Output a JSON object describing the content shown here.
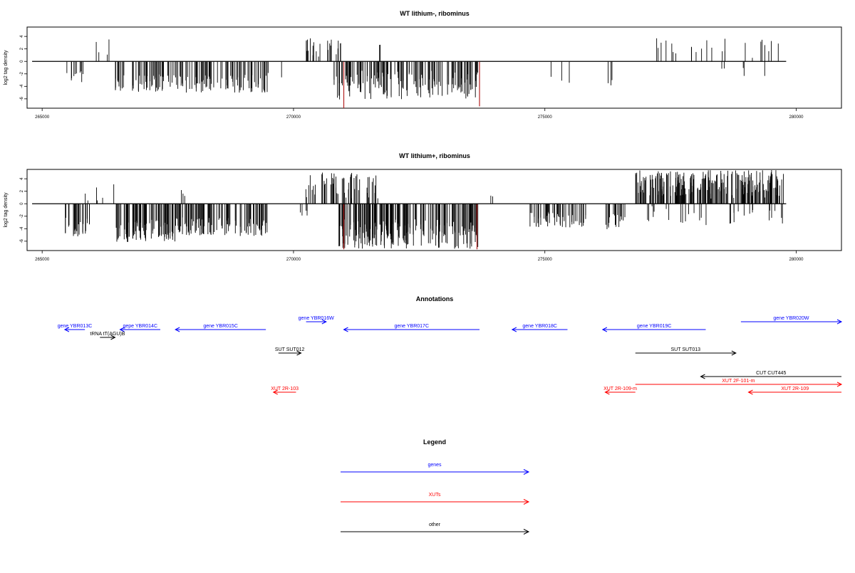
{
  "colors": {
    "gene": "#0000ff",
    "xut": "#ff0000",
    "other": "#000000",
    "highlight": "#b22222",
    "bar": "#000000"
  },
  "chart_data": [
    {
      "type": "bar",
      "title": "WT lithium-, ribominus",
      "ylabel": "log2 tag density",
      "xlim": [
        264700,
        280900
      ],
      "ylim": [
        -7.5,
        5.5
      ],
      "x_ticks": [
        "265000",
        "270000",
        "275000",
        "280000"
      ],
      "x_tick_values": [
        265000,
        270000,
        275000,
        280000
      ],
      "y_ticks": [
        "-6",
        "-4",
        "-2",
        "0",
        "2",
        "4"
      ],
      "y_tick_values": [
        -6,
        -4,
        -2,
        0,
        2,
        4
      ],
      "baseline_range": [
        264800,
        279800
      ],
      "segments": [
        {
          "from": 265450,
          "to": 265850,
          "dir": -1,
          "min": 1.2,
          "max": 3.4,
          "n": 10,
          "seed": 11
        },
        {
          "from": 266000,
          "to": 266400,
          "dir": 1,
          "min": 0.5,
          "max": 4.4,
          "n": 4,
          "seed": 12
        },
        {
          "from": 266450,
          "to": 267650,
          "dir": -1,
          "min": 1.8,
          "max": 4.9,
          "n": 55,
          "seed": 13
        },
        {
          "from": 267650,
          "to": 269500,
          "dir": -1,
          "min": 1.8,
          "max": 5.0,
          "n": 85,
          "seed": 14
        },
        {
          "from": 269750,
          "to": 269800,
          "dir": -1,
          "min": 2.0,
          "max": 3.0,
          "n": 1,
          "seed": 15
        },
        {
          "from": 270200,
          "to": 270950,
          "dir": 1,
          "min": 0.5,
          "max": 3.8,
          "n": 22,
          "seed": 16
        },
        {
          "from": 270800,
          "to": 273700,
          "dir": -1,
          "min": 1.5,
          "max": 6.1,
          "n": 150,
          "seed": 17
        },
        {
          "from": 271650,
          "to": 271750,
          "dir": 1,
          "min": 1.5,
          "max": 2.8,
          "n": 2,
          "seed": 18
        },
        {
          "from": 274950,
          "to": 275600,
          "dir": -1,
          "min": 1.0,
          "max": 3.9,
          "n": 3,
          "seed": 19
        },
        {
          "from": 276250,
          "to": 276450,
          "dir": -1,
          "min": 2.0,
          "max": 3.9,
          "n": 3,
          "seed": 20
        },
        {
          "from": 276800,
          "to": 279650,
          "dir": 1,
          "min": 0.4,
          "max": 3.7,
          "n": 24,
          "seed": 21
        },
        {
          "from": 278400,
          "to": 279600,
          "dir": -1,
          "min": 1.0,
          "max": 2.9,
          "n": 5,
          "seed": 22
        }
      ],
      "highlights": [
        {
          "x": 271000,
          "depth": 7.5
        },
        {
          "x": 273700,
          "depth": 7.2
        }
      ]
    },
    {
      "type": "bar",
      "title": "WT lithium+, ribominus",
      "ylabel": "log2 tag density",
      "xlim": [
        264700,
        280900
      ],
      "ylim": [
        -7.5,
        5.5
      ],
      "x_ticks": [
        "265000",
        "270000",
        "275000",
        "280000"
      ],
      "x_tick_values": [
        265000,
        270000,
        275000,
        280000
      ],
      "y_ticks": [
        "-6",
        "-4",
        "-2",
        "0",
        "2",
        "4"
      ],
      "y_tick_values": [
        -6,
        -4,
        -2,
        0,
        2,
        4
      ],
      "baseline_range": [
        264800,
        279800
      ],
      "segments": [
        {
          "from": 265450,
          "to": 265950,
          "dir": -1,
          "min": 2.0,
          "max": 5.3,
          "n": 28,
          "seed": 31
        },
        {
          "from": 265800,
          "to": 266450,
          "dir": 1,
          "min": 0.5,
          "max": 3.4,
          "n": 6,
          "seed": 32
        },
        {
          "from": 266450,
          "to": 267650,
          "dir": -1,
          "min": 2.5,
          "max": 6.2,
          "n": 95,
          "seed": 33
        },
        {
          "from": 267750,
          "to": 268150,
          "dir": 1,
          "min": 0.5,
          "max": 2.2,
          "n": 3,
          "seed": 34
        },
        {
          "from": 267650,
          "to": 269500,
          "dir": -1,
          "min": 2.0,
          "max": 5.2,
          "n": 110,
          "seed": 35
        },
        {
          "from": 270050,
          "to": 270300,
          "dir": -1,
          "min": 0.8,
          "max": 2.0,
          "n": 5,
          "seed": 36
        },
        {
          "from": 270200,
          "to": 271700,
          "dir": 1,
          "min": 0.8,
          "max": 5.0,
          "n": 55,
          "seed": 37
        },
        {
          "from": 270900,
          "to": 273700,
          "dir": -1,
          "min": 2.5,
          "max": 7.2,
          "n": 200,
          "seed": 38
        },
        {
          "from": 273900,
          "to": 274100,
          "dir": 1,
          "min": 0.6,
          "max": 1.5,
          "n": 2,
          "seed": 39
        },
        {
          "from": 274700,
          "to": 275850,
          "dir": -1,
          "min": 1.2,
          "max": 3.8,
          "n": 55,
          "seed": 40
        },
        {
          "from": 276150,
          "to": 276600,
          "dir": -1,
          "min": 1.5,
          "max": 4.3,
          "n": 18,
          "seed": 41
        },
        {
          "from": 276800,
          "to": 279750,
          "dir": 1,
          "min": 0.8,
          "max": 5.4,
          "n": 230,
          "seed": 42
        },
        {
          "from": 276900,
          "to": 279750,
          "dir": -1,
          "min": 0.4,
          "max": 3.6,
          "n": 30,
          "seed": 43
        }
      ],
      "highlights": [
        {
          "x": 271000,
          "depth": 7.3
        },
        {
          "x": 273650,
          "depth": 7.3
        }
      ]
    },
    {
      "type": "annotation-track",
      "title": "Annotations",
      "xlim": [
        264700,
        280900
      ],
      "features": [
        {
          "label": "gene YBR013C",
          "class": "gene",
          "start": 265450,
          "end": 265850,
          "strand": "-",
          "row": 0
        },
        {
          "label": "gepe YBR014C",
          "class": "gene",
          "start": 266550,
          "end": 267350,
          "strand": "-",
          "row": 0
        },
        {
          "label": "gene YBR015C",
          "class": "gene",
          "start": 267650,
          "end": 269450,
          "strand": "-",
          "row": 0
        },
        {
          "label": "gene YBR016W",
          "class": "gene",
          "start": 270250,
          "end": 270650,
          "strand": "+",
          "row": -1
        },
        {
          "label": "gene YBR017C",
          "class": "gene",
          "start": 271000,
          "end": 273700,
          "strand": "-",
          "row": 0
        },
        {
          "label": "gene YBR018C",
          "class": "gene",
          "start": 274350,
          "end": 275450,
          "strand": "-",
          "row": 0
        },
        {
          "label": "gene YBR019C",
          "class": "gene",
          "start": 276150,
          "end": 278200,
          "strand": "-",
          "row": 0
        },
        {
          "label": "gene YBR020W",
          "class": "gene",
          "start": 278900,
          "end": 280900,
          "strand": "+",
          "row": -1
        },
        {
          "label": "tRNA tT(AGU)B",
          "class": "other",
          "start": 266150,
          "end": 266450,
          "strand": "+",
          "row": 1
        },
        {
          "label": "SUT SUT012",
          "class": "other",
          "start": 269700,
          "end": 270150,
          "strand": "+",
          "row": 3
        },
        {
          "label": "SUT SUT013",
          "class": "other",
          "start": 276800,
          "end": 278800,
          "strand": "+",
          "row": 3
        },
        {
          "label": "CUT CUT445",
          "class": "other",
          "start": 278100,
          "end": 280900,
          "strand": "-",
          "row": 6
        },
        {
          "label": "XUT 2F-101-m",
          "class": "xut",
          "start": 276800,
          "end": 280900,
          "strand": "+",
          "row": 7
        },
        {
          "label": "XUT 2R-103",
          "class": "xut",
          "start": 269600,
          "end": 270050,
          "strand": "-",
          "row": 8
        },
        {
          "label": "XUT 2R-109-m",
          "class": "xut",
          "start": 276200,
          "end": 276800,
          "strand": "-",
          "row": 8
        },
        {
          "label": "XUT 2R-109",
          "class": "xut",
          "start": 279050,
          "end": 280900,
          "strand": "-",
          "row": 8
        }
      ]
    },
    {
      "type": "legend",
      "title": "Legend",
      "entries": [
        {
          "label": "genes",
          "class": "gene"
        },
        {
          "label": "XUTs",
          "class": "xut"
        },
        {
          "label": "other",
          "class": "other"
        }
      ]
    }
  ]
}
